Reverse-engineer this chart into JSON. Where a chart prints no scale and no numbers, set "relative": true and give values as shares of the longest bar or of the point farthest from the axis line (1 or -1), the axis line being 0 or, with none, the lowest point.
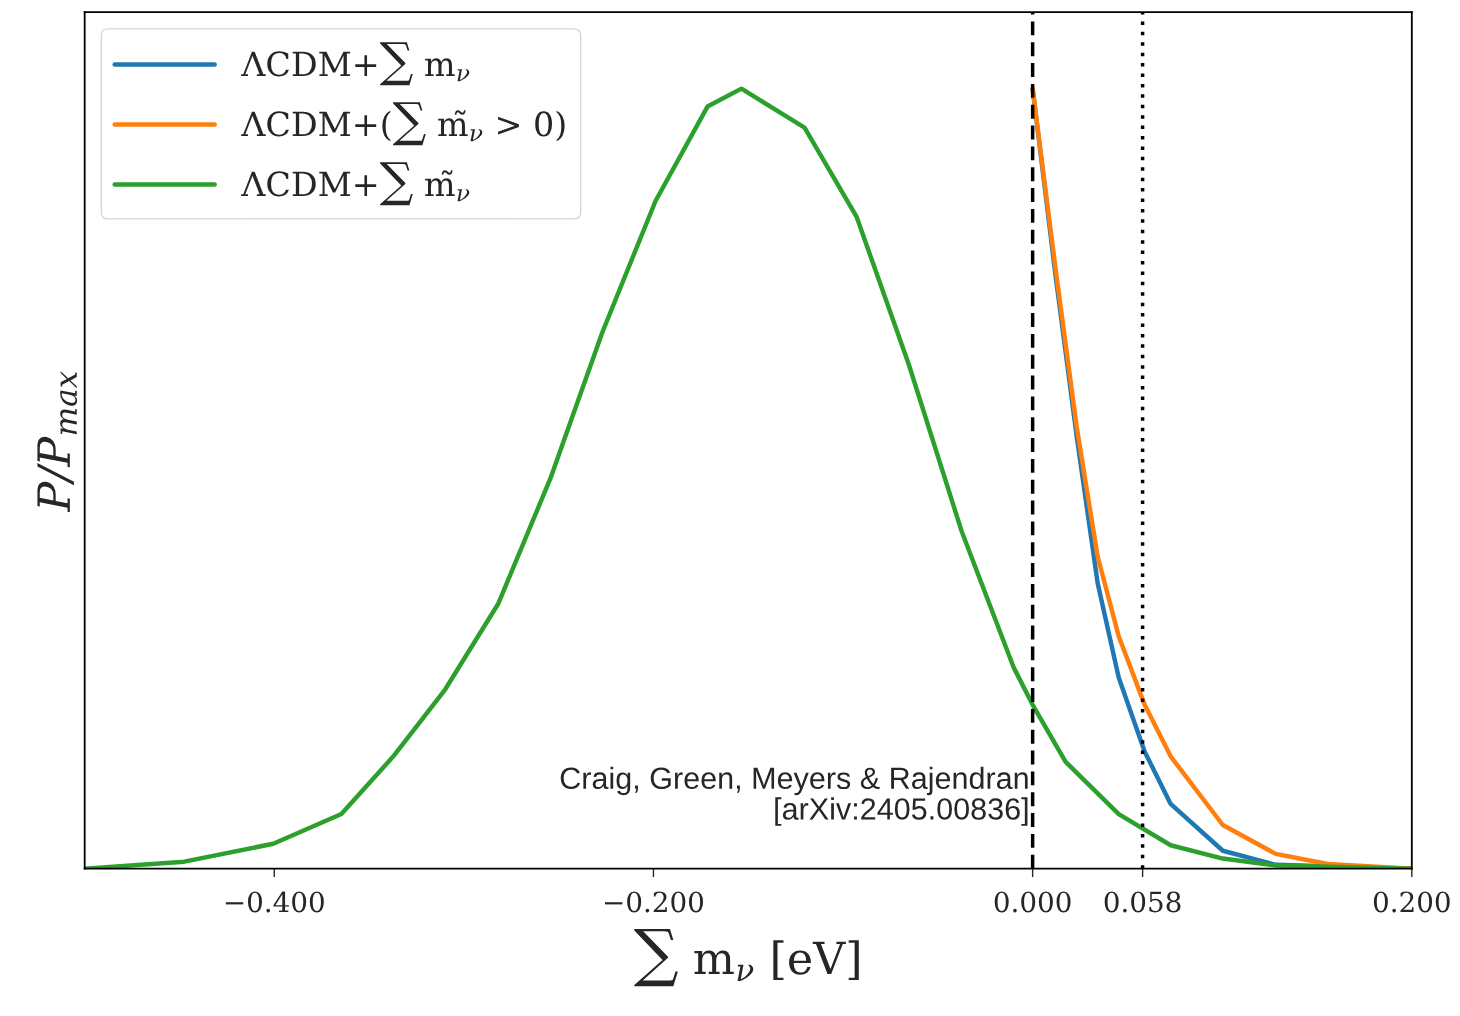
{
  "chart_data": {
    "type": "line",
    "relative": true,
    "xlabel": "∑ m$_{ν}$ [eV]",
    "ylabel": "P/P$_{max}$",
    "xlim": [
      -0.5,
      0.2
    ],
    "xticks": [
      {
        "value": -0.4,
        "label": "−0.400"
      },
      {
        "value": -0.2,
        "label": "−0.200"
      },
      {
        "value": 0,
        "label": "0.000"
      },
      {
        "value": 0.058,
        "label": "0.058"
      },
      {
        "value": 0.2,
        "label": "0.200"
      }
    ],
    "tick_labels": "x",
    "grid": false,
    "legend": "top left",
    "series": [
      {
        "name": "ΛCDM+∑ m$_{ν}$",
        "color": "#1f77b4",
        "x": [
          0,
          0.0121,
          0.0232,
          0.0343,
          0.0454,
          0.0591,
          0.0728,
          0.1003,
          0.1282,
          0.2
        ],
        "values": [
          1.0,
          0.76,
          0.555,
          0.366,
          0.245,
          0.15,
          0.083,
          0.023,
          0.005,
          0
        ]
      },
      {
        "name": "ΛCDM+(∑ m̃$_{ν}$ > 0)",
        "color": "#ff7f0e",
        "x": [
          0,
          0.0121,
          0.0232,
          0.0343,
          0.0454,
          0.0591,
          0.0728,
          0.1003,
          0.1282,
          0.1557,
          0.2
        ],
        "values": [
          1.0,
          0.769,
          0.567,
          0.4,
          0.298,
          0.21,
          0.144,
          0.056,
          0.019,
          0.006,
          0
        ]
      },
      {
        "name": "ΛCDM+∑ m̃$_{ν}$",
        "color": "#2ca02c",
        "x": [
          -0.5,
          -0.4475,
          -0.4005,
          -0.3646,
          -0.3372,
          -0.3098,
          -0.2818,
          -0.2544,
          -0.2269,
          -0.1989,
          -0.1715,
          -0.1536,
          -0.1203,
          -0.0929,
          -0.0654,
          -0.0375,
          -0.01,
          0,
          0.0174,
          0.0454,
          0.0728,
          0.1003,
          0.1282,
          0.2
        ],
        "values": [
          0,
          0.009,
          0.032,
          0.07,
          0.144,
          0.23,
          0.34,
          0.5,
          0.688,
          0.856,
          0.977,
          1.0,
          0.95,
          0.836,
          0.647,
          0.433,
          0.258,
          0.21,
          0.137,
          0.07,
          0.03,
          0.013,
          0.004,
          0
        ]
      }
    ],
    "ref_lines": [
      {
        "axis": "x",
        "value": 0,
        "color": "#000000",
        "line_style": "dashed"
      },
      {
        "axis": "x",
        "value": 0.058,
        "color": "#000000",
        "line_style": "dotted"
      }
    ],
    "annotations": [
      "Craig, Green, Meyers & Rajendran\n[arXiv:2405.00836]"
    ]
  }
}
